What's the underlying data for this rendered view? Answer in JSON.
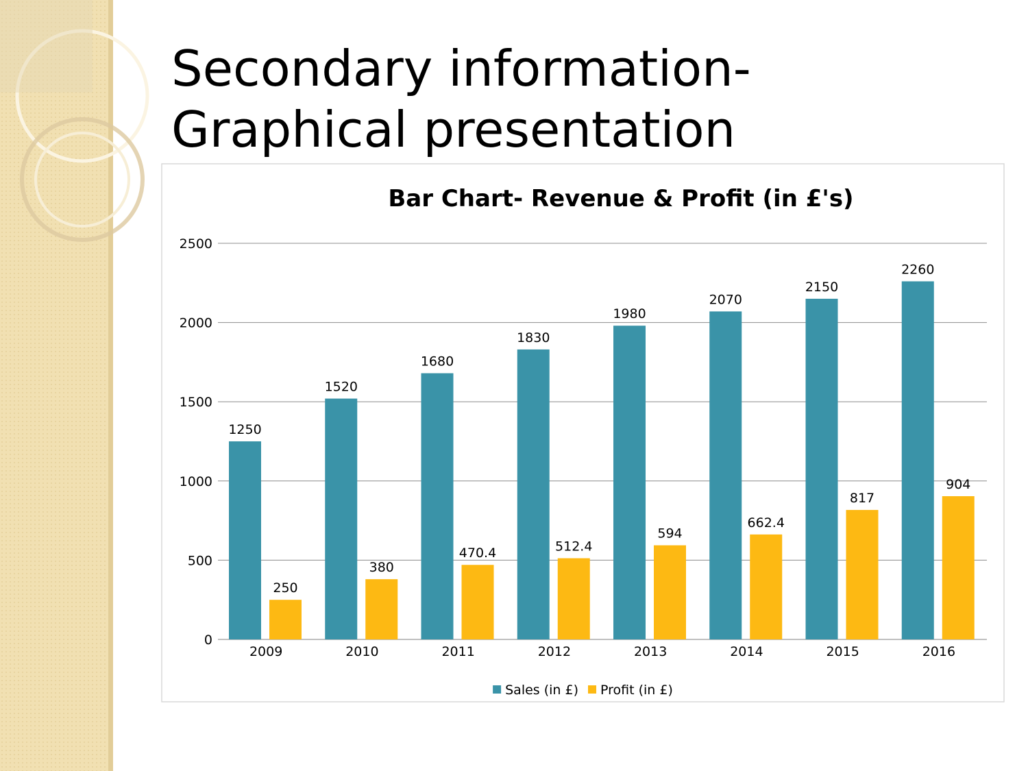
{
  "slide_title": [
    "Secondary information-",
    "Graphical presentation"
  ],
  "chart_data": {
    "type": "bar",
    "title": "Bar Chart- Revenue & Profit (in £'s)",
    "categories": [
      "2009",
      "2010",
      "2011",
      "2012",
      "2013",
      "2014",
      "2015",
      "2016"
    ],
    "series": [
      {
        "name": "Sales (in £)",
        "color": "#3a93a8",
        "values": [
          1250,
          1520,
          1680,
          1830,
          1980,
          2070,
          2150,
          2260
        ]
      },
      {
        "name": "Profit (in £)",
        "color": "#fdb913",
        "values": [
          250,
          380,
          470.4,
          512.4,
          594,
          662.4,
          817,
          904
        ]
      }
    ],
    "ylim": [
      0,
      2500
    ],
    "yticks": [
      0,
      500,
      1000,
      1500,
      2000,
      2500
    ],
    "grid": true,
    "data_labels": true,
    "legend": "bottom"
  }
}
